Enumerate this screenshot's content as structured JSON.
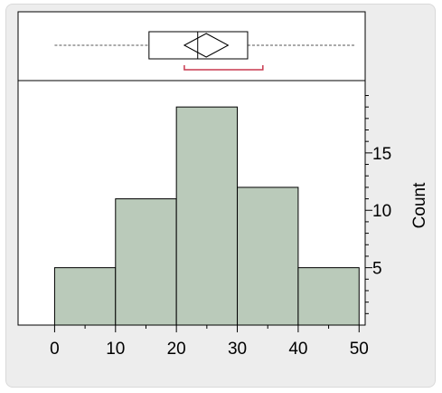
{
  "chart_data": {
    "type": "bar",
    "subtype": "histogram",
    "bins": [
      {
        "start": 0,
        "end": 10,
        "count": 5
      },
      {
        "start": 10,
        "end": 20,
        "count": 11
      },
      {
        "start": 20,
        "end": 30,
        "count": 19
      },
      {
        "start": 30,
        "end": 40,
        "count": 12
      },
      {
        "start": 40,
        "end": 50,
        "count": 5
      }
    ],
    "xlim": [
      -6,
      51
    ],
    "ylim": [
      0,
      21.3
    ],
    "x_ticks": [
      "0",
      "10",
      "20",
      "30",
      "40",
      "50"
    ],
    "y_ticks": [
      "5",
      "10",
      "15"
    ],
    "ylabel": "Count",
    "boxplot": {
      "whisker_min": 0,
      "q1": 15.5,
      "median": 23.5,
      "q3": 31.7,
      "whisker_max": 49.5,
      "mean": 24.9,
      "mean_ci": [
        21.3,
        28.5
      ],
      "shortest_half": [
        21.3,
        34.2
      ]
    },
    "grid": false,
    "colors": {
      "bar_fill": "#bacaba",
      "bar_stroke": "#000000",
      "shortest_half": "#c8394f",
      "whisker": "#555555",
      "frame": "#ededed"
    }
  }
}
